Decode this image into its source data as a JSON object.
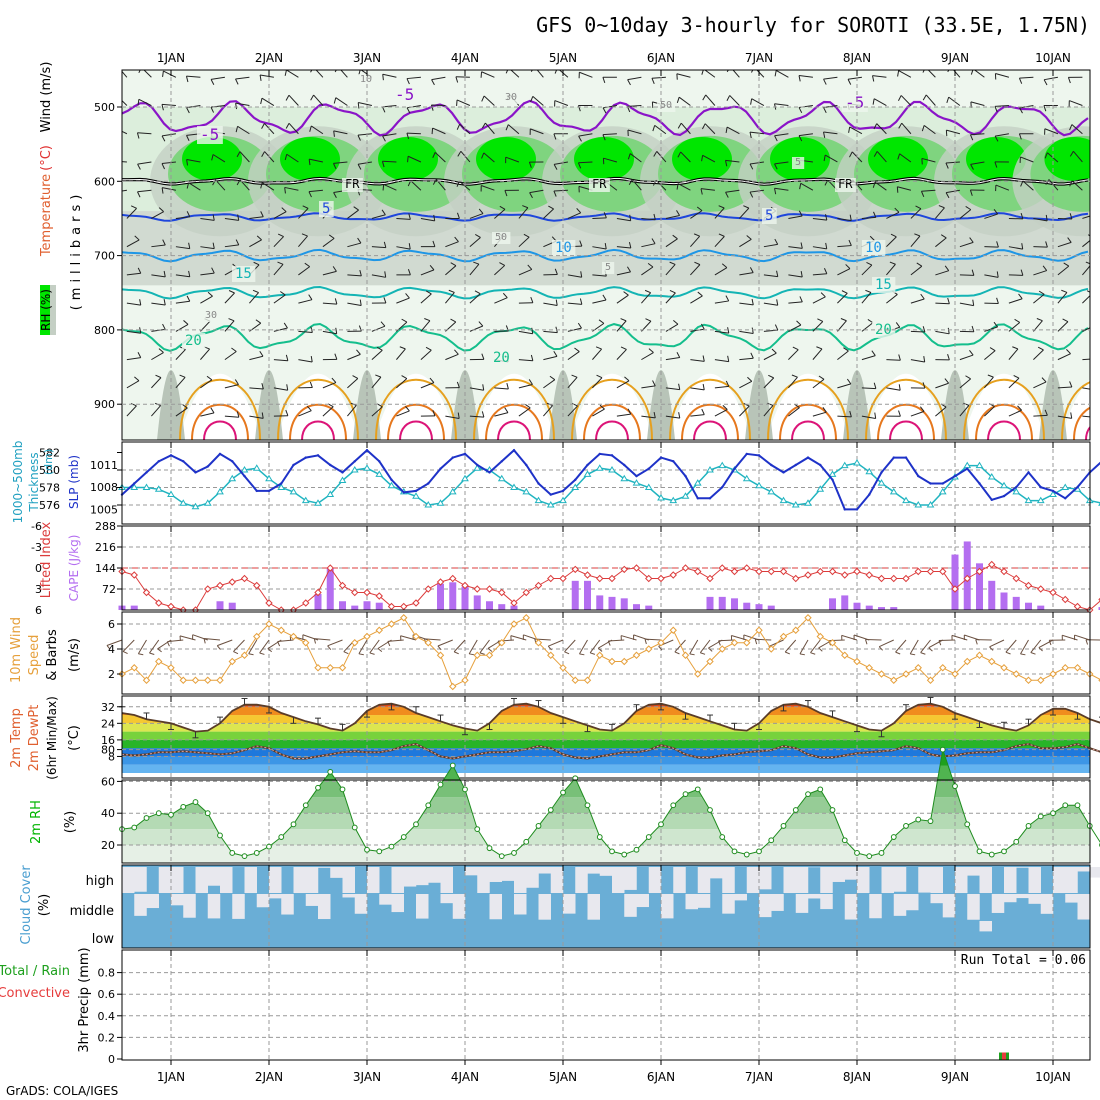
{
  "title": "GFS 0~10day 3-hourly for SOROTI (33.5E, 1.75N)",
  "footer": "GrADS: COLA/IGES",
  "colors": {
    "rh_green": "#00e600",
    "rh_mid": "#7fd47f",
    "rh_pale": "#dceedc",
    "rh_grey": "#c4cfc4",
    "temp_purple": "#8a14c8",
    "temp_blue": "#1e46dc",
    "temp_lightblue": "#1e96e6",
    "temp_teal": "#14b4b4",
    "temp_green": "#14be8c",
    "temp_orange": "#e6a01e",
    "temp_darkorange": "#e6781e",
    "temp_magenta": "#dc1478",
    "slp_line": "#1e32c8",
    "thick_line": "#20b4c0",
    "cape_bar": "#b46ef0",
    "li_line": "#dc3c3c",
    "wind_line": "#e6a03c",
    "rh2m_green": "#00c800",
    "cloud_blue": "#6aaed6",
    "cloud_light": "#e8e8ee",
    "precip_green": "#1ea01e",
    "precip_red": "#e63c3c"
  },
  "time_axis": {
    "days": [
      "1JAN",
      "2JAN",
      "3JAN",
      "4JAN",
      "5JAN",
      "6JAN",
      "7JAN",
      "8JAN",
      "9JAN",
      "10JAN"
    ],
    "start": "00Z 31DEC (day 0.5 before 1JAN)",
    "step_hours": 3,
    "n_steps": 81
  },
  "panels": {
    "upper": {
      "labels": {
        "rh": "RH (%)",
        "temperature": "Temperature",
        "temp_unit": "(°C)",
        "wind": "Wind (m/s)",
        "ylabel": "(millibars)"
      },
      "pressure_ticks": [
        "500",
        "600",
        "700",
        "800",
        "900"
      ],
      "contour_labels": [
        "-5",
        "-5",
        "-5",
        "FR",
        "FR",
        "FR",
        "5",
        "5",
        "10",
        "10",
        "15",
        "15",
        "20",
        "20",
        "20",
        "10",
        "30",
        "30",
        "50",
        "50",
        "5",
        "5"
      ]
    },
    "slp": {
      "label_thick": "1000~500mb",
      "label_thick2": "Thickness",
      "label_thick_unit": "(dm)",
      "label_slp": "SLP (mb)",
      "left_ticks": [
        "582",
        "580",
        "578",
        "576"
      ],
      "right_ticks": [
        "1011",
        "1008",
        "1005"
      ]
    },
    "cape": {
      "label_li": "Lifted Index",
      "label_cape": "CAPE (J/kg)",
      "li_ticks": [
        "-6",
        "-3",
        "0",
        "3",
        "6"
      ],
      "cape_ticks": [
        "288",
        "216",
        "144",
        "72"
      ]
    },
    "wind10": {
      "label1": "10m Wind",
      "label2": "Speed",
      "label3": "& Barbs",
      "unit": "(m/s)",
      "ticks": [
        "6",
        "4",
        "2"
      ]
    },
    "temp2m": {
      "label1": "2m Temp",
      "label2": "2m DewPt",
      "label3": "(6hr Min/Max)",
      "unit": "(°C)",
      "ticks": [
        "32",
        "24",
        "16",
        "8"
      ]
    },
    "rh2m": {
      "label": "2m RH",
      "unit": "(%)",
      "ticks": [
        "80",
        "60",
        "40",
        "20"
      ]
    },
    "cloud": {
      "label": "Cloud Cover",
      "unit": "(%)",
      "levels": [
        "high",
        "middle",
        "low"
      ]
    },
    "precip": {
      "label1": "Total / Rain",
      "label2": "Convective",
      "ylabel": "3hr Precip (mm)",
      "ticks": [
        "0.8",
        "0.6",
        "0.4",
        "0.2",
        "0"
      ],
      "run_total": "Run Total = 0.06"
    }
  },
  "chart_data": [
    {
      "type": "line",
      "name": "slp_thickness",
      "x_start_day": 0.5,
      "x_step_days": 0.125,
      "series": [
        {
          "name": "SLP (mb)",
          "axis": "right",
          "values": [
            1007.0,
            1008.5,
            1010.0,
            1011.5,
            1012.3,
            1011.5,
            1010.0,
            1010.8,
            1012.5,
            1011.5,
            1009.5,
            1007.5,
            1007.5,
            1008.5,
            1011.0,
            1012.0,
            1012.3,
            1011.0,
            1010.0,
            1011.5,
            1013.0,
            1011.5,
            1009.0,
            1007.3,
            1007.5,
            1008.5,
            1010.5,
            1012.0,
            1012.5,
            1011.0,
            1010.0,
            1011.5,
            1013.0,
            1011.0,
            1008.5,
            1007.0,
            1007.5,
            1009.0,
            1011.0,
            1012.5,
            1012.3,
            1011.0,
            1009.5,
            1010.5,
            1012.0,
            1011.5,
            1009.5,
            1006.5,
            1006.5,
            1008.0,
            1010.5,
            1012.5,
            1012.3,
            1011.0,
            1010.0,
            1011.0,
            1012.0,
            1011.0,
            1009.0,
            1005.0,
            1005.0,
            1007.0,
            1010.0,
            1012.0,
            1012.0,
            1009.5,
            1008.5,
            1008.5,
            1009.5,
            1010.5,
            1008.5,
            1006.3,
            1006.8,
            1008.0,
            1010.0,
            1008.0,
            1007.5,
            1006.5,
            1008.0,
            1010.0,
            1011.5
          ]
        },
        {
          "name": "Thickness (dm)",
          "axis": "left",
          "values": [
            578.0,
            578.0,
            578.0,
            577.8,
            577.2,
            576.2,
            575.8,
            576.2,
            577.5,
            579.0,
            580.0,
            580.2,
            579.0,
            578.0,
            577.5,
            576.5,
            576.2,
            577.2,
            578.8,
            580.0,
            580.2,
            579.5,
            578.2,
            577.5,
            577.0,
            576.0,
            576.2,
            577.5,
            579.0,
            580.2,
            580.0,
            579.0,
            578.0,
            577.5,
            576.5,
            576.0,
            576.5,
            578.0,
            579.5,
            580.2,
            580.0,
            579.0,
            578.5,
            578.0,
            576.8,
            576.5,
            577.0,
            578.5,
            580.0,
            580.5,
            580.0,
            579.0,
            578.2,
            577.5,
            576.5,
            576.0,
            576.2,
            577.8,
            579.5,
            580.5,
            580.8,
            579.8,
            578.5,
            577.5,
            576.5,
            576.0,
            576.0,
            577.5,
            579.2,
            580.5,
            580.5,
            579.2,
            578.2,
            577.5,
            576.5,
            576.5,
            577.2,
            578.0,
            577.8,
            576.5,
            576.2
          ]
        }
      ]
    },
    {
      "type": "bar",
      "name": "cape_lifted_index",
      "x_start_day": 0.5,
      "x_step_days": 0.125,
      "series": [
        {
          "name": "CAPE (J/kg)",
          "kind": "bar",
          "values": [
            15,
            15,
            0,
            0,
            0,
            0,
            0,
            0,
            30,
            25,
            0,
            0,
            0,
            0,
            0,
            0,
            55,
            145,
            30,
            15,
            30,
            25,
            0,
            0,
            0,
            0,
            90,
            95,
            80,
            50,
            30,
            20,
            15,
            0,
            0,
            0,
            0,
            100,
            100,
            50,
            45,
            40,
            20,
            15,
            0,
            0,
            0,
            0,
            45,
            45,
            40,
            25,
            20,
            15,
            0,
            0,
            0,
            0,
            40,
            50,
            25,
            15,
            10,
            10,
            0,
            0,
            0,
            0,
            190,
            235,
            160,
            100,
            60,
            45,
            25,
            15,
            0,
            0,
            0,
            0,
            10
          ]
        },
        {
          "name": "Lifted Index",
          "kind": "line",
          "values": [
            0.5,
            1.0,
            3.5,
            5.0,
            5.5,
            6.0,
            6.0,
            3.0,
            2.5,
            2.0,
            1.5,
            2.5,
            5.0,
            6.0,
            6.0,
            5.0,
            3.5,
            0.0,
            2.5,
            3.5,
            3.5,
            4.0,
            5.5,
            5.5,
            5.0,
            3.0,
            2.0,
            1.5,
            2.5,
            3.0,
            3.0,
            3.5,
            5.0,
            3.5,
            2.5,
            1.5,
            1.5,
            0.2,
            1.0,
            1.5,
            1.5,
            0.2,
            0.0,
            1.5,
            1.5,
            1.0,
            0.0,
            0.5,
            1.5,
            0.0,
            0.5,
            0.0,
            0.5,
            0.5,
            0.5,
            1.5,
            1.0,
            0.5,
            0.5,
            1.0,
            0.5,
            1.0,
            1.5,
            1.5,
            1.5,
            0.5,
            0.5,
            0.5,
            3.0,
            1.5,
            0.5,
            -0.5,
            0.5,
            1.5,
            2.5,
            3.0,
            3.5,
            4.5,
            5.5,
            6.0,
            4.5
          ]
        }
      ]
    },
    {
      "type": "line",
      "name": "wind10m_speed",
      "x_start_day": 0.5,
      "x_step_days": 0.125,
      "series": [
        {
          "name": "10m Wind Speed (m/s)",
          "values": [
            2.0,
            2.5,
            1.5,
            3.0,
            2.5,
            1.5,
            1.5,
            1.5,
            1.5,
            3.0,
            3.5,
            5.0,
            6.0,
            5.5,
            5.0,
            4.5,
            2.5,
            2.5,
            2.5,
            4.5,
            5.0,
            5.5,
            6.0,
            6.5,
            5.0,
            4.5,
            3.5,
            1.0,
            1.5,
            3.5,
            3.5,
            4.5,
            6.0,
            6.5,
            4.5,
            3.5,
            2.5,
            1.5,
            1.5,
            3.5,
            3.0,
            3.0,
            3.5,
            4.0,
            4.5,
            5.5,
            3.5,
            2.0,
            3.0,
            4.0,
            4.5,
            4.5,
            5.5,
            4.0,
            5.0,
            5.5,
            6.5,
            5.0,
            4.5,
            3.5,
            3.0,
            2.5,
            2.0,
            1.5,
            2.0,
            2.5,
            1.5,
            2.5,
            2.0,
            3.0,
            3.5,
            3.0,
            2.5,
            2.0,
            1.5,
            1.5,
            2.0,
            2.5,
            2.5,
            2.0,
            1.5
          ]
        }
      ]
    },
    {
      "type": "area",
      "name": "temp_dewpoint_2m",
      "x_start_day": 0.5,
      "x_step_days": 0.125,
      "series": [
        {
          "name": "2m Temp (°C)",
          "values": [
            29.0,
            28.0,
            26.0,
            25.0,
            24.0,
            22.0,
            20.0,
            20.5,
            24.0,
            30.0,
            33.0,
            33.0,
            32.0,
            29.0,
            27.0,
            25.0,
            23.5,
            21.5,
            20.5,
            24.0,
            30.0,
            33.0,
            33.5,
            32.0,
            29.0,
            27.0,
            25.0,
            23.0,
            21.5,
            20.5,
            24.0,
            30.0,
            33.0,
            33.5,
            32.0,
            29.0,
            27.0,
            25.0,
            23.0,
            21.0,
            20.5,
            24.0,
            30.0,
            33.0,
            33.5,
            32.0,
            29.0,
            27.0,
            25.0,
            23.0,
            21.0,
            20.5,
            24.0,
            30.0,
            33.0,
            33.5,
            32.0,
            29.0,
            27.0,
            25.0,
            23.0,
            21.0,
            20.5,
            24.0,
            30.0,
            33.0,
            33.5,
            32.0,
            29.0,
            27.0,
            25.0,
            23.0,
            21.5,
            20.5,
            23.0,
            28.0,
            31.0,
            31.0,
            29.0,
            26.0,
            24.0
          ]
        },
        {
          "name": "2m DewPt (°C)",
          "values": [
            9.0,
            8.5,
            9.0,
            10.0,
            10.0,
            10.5,
            10.0,
            9.5,
            9.0,
            9.5,
            11.0,
            13.0,
            12.0,
            9.0,
            7.0,
            7.0,
            8.0,
            9.0,
            10.0,
            10.5,
            10.0,
            10.0,
            11.0,
            13.0,
            14.0,
            11.0,
            8.0,
            7.0,
            8.0,
            9.0,
            10.0,
            10.0,
            10.5,
            11.5,
            13.0,
            12.0,
            9.0,
            7.5,
            7.0,
            8.0,
            9.0,
            10.0,
            10.0,
            11.0,
            13.5,
            12.0,
            9.0,
            7.5,
            7.5,
            8.5,
            9.0,
            10.0,
            10.5,
            11.0,
            13.0,
            12.0,
            9.0,
            7.5,
            7.5,
            8.5,
            9.5,
            10.0,
            10.5,
            11.0,
            13.0,
            12.0,
            9.0,
            8.0,
            8.5,
            9.5,
            10.0,
            10.0,
            11.0,
            13.0,
            14.0,
            12.0,
            12.0,
            12.5,
            14.0,
            12.0,
            10.0
          ]
        }
      ]
    },
    {
      "type": "area",
      "name": "rh_2m",
      "x_start_day": 0.5,
      "x_step_days": 0.125,
      "series": [
        {
          "name": "2m RH (%)",
          "values": [
            30,
            31,
            37,
            40,
            39,
            44,
            47,
            40,
            26,
            15,
            13,
            15,
            19,
            25,
            33,
            45,
            56,
            66,
            55,
            31,
            17,
            16,
            19,
            25,
            33,
            45,
            58,
            70,
            55,
            30,
            18,
            13,
            15,
            22,
            32,
            42,
            53,
            62,
            45,
            25,
            16,
            14,
            17,
            25,
            33,
            45,
            52,
            55,
            42,
            25,
            16,
            14,
            16,
            23,
            32,
            42,
            52,
            55,
            42,
            23,
            15,
            13,
            15,
            25,
            32,
            36,
            35,
            80,
            57,
            33,
            16,
            14,
            16,
            22,
            32,
            38,
            40,
            45,
            45,
            32,
            20
          ]
        }
      ]
    },
    {
      "type": "bar",
      "name": "precip_3hr",
      "categories": [
        "9.5 days"
      ],
      "series": [
        {
          "name": "Total / Rain (mm)",
          "values": [
            0.06
          ]
        }
      ]
    }
  ]
}
